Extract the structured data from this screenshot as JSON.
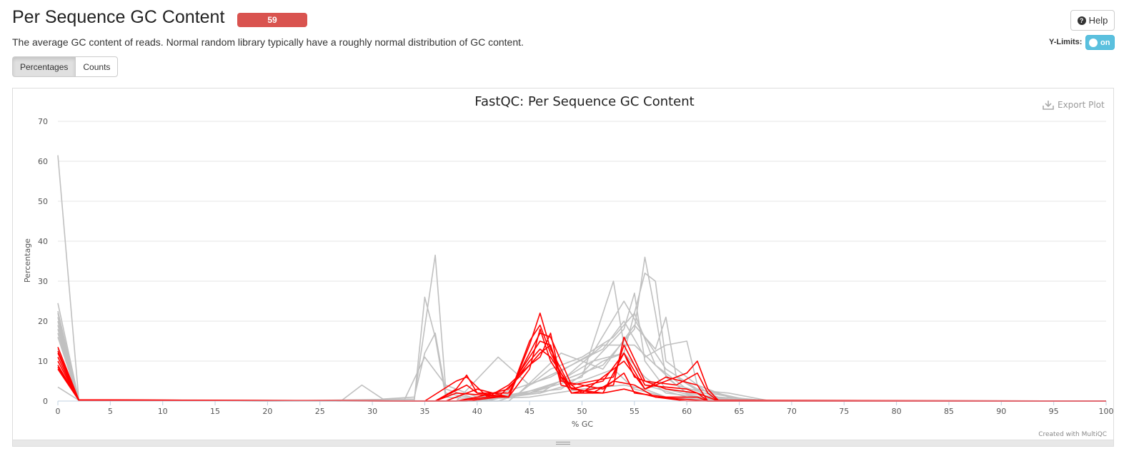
{
  "header": {
    "title": "Per Sequence GC Content",
    "status_count": "59",
    "help_label": "Help",
    "description": "The average GC content of reads. Normal random library typically have a roughly normal distribution of GC content."
  },
  "controls": {
    "ylimits_label": "Y-Limits:",
    "ylimits_toggle": "on",
    "tabs": [
      {
        "label": "Percentages",
        "active": true
      },
      {
        "label": "Counts",
        "active": false
      }
    ]
  },
  "plot": {
    "export_label": "Export Plot",
    "credit": "Created with MultiQC"
  },
  "colors": {
    "fail": "#ff0000",
    "pass": "#c0c0c0",
    "status_bar": "#d9534f",
    "toggle": "#5bc0de"
  },
  "chart_data": {
    "type": "line",
    "title": "FastQC: Per Sequence GC Content",
    "xlabel": "% GC",
    "ylabel": "Percentage",
    "xlim": [
      0,
      100
    ],
    "ylim": [
      0,
      70
    ],
    "xticks": [
      0,
      5,
      10,
      15,
      20,
      25,
      30,
      35,
      40,
      45,
      50,
      55,
      60,
      65,
      70,
      75,
      80,
      85,
      90,
      95,
      100
    ],
    "yticks": [
      0,
      10,
      20,
      30,
      40,
      50,
      60,
      70
    ],
    "grid": true,
    "series": [
      {
        "status": "pass",
        "points": [
          [
            0,
            61.5
          ],
          [
            2,
            0.3
          ],
          [
            20,
            0
          ],
          [
            34,
            0.2
          ],
          [
            35,
            26
          ],
          [
            36,
            16
          ],
          [
            37,
            1
          ],
          [
            40,
            0.5
          ],
          [
            45,
            1
          ],
          [
            50,
            3
          ],
          [
            54,
            4
          ],
          [
            56,
            3
          ],
          [
            58,
            1
          ],
          [
            62,
            0.3
          ],
          [
            66,
            0
          ]
        ]
      },
      {
        "status": "pass",
        "points": [
          [
            0,
            24.5
          ],
          [
            2,
            0.3
          ],
          [
            20,
            0
          ],
          [
            34,
            0.5
          ],
          [
            36,
            36.5
          ],
          [
            37,
            3
          ],
          [
            40,
            0.5
          ],
          [
            46,
            2
          ],
          [
            50,
            5
          ],
          [
            53,
            8
          ],
          [
            55,
            3
          ],
          [
            58,
            1
          ],
          [
            62,
            0.2
          ],
          [
            66,
            0
          ]
        ]
      },
      {
        "status": "pass",
        "points": [
          [
            0,
            22
          ],
          [
            2,
            0.2
          ],
          [
            27,
            0
          ],
          [
            29,
            4
          ],
          [
            31,
            0.5
          ],
          [
            34,
            1
          ],
          [
            35,
            12
          ],
          [
            36,
            17
          ],
          [
            37,
            2
          ],
          [
            40,
            0.5
          ],
          [
            48,
            3
          ],
          [
            52,
            10
          ],
          [
            54,
            12
          ],
          [
            56,
            6
          ],
          [
            58,
            2
          ],
          [
            63,
            0.5
          ],
          [
            70,
            0
          ]
        ]
      },
      {
        "status": "pass",
        "points": [
          [
            0,
            20
          ],
          [
            2,
            0.2
          ],
          [
            20,
            0
          ],
          [
            33,
            0
          ],
          [
            35,
            11
          ],
          [
            37,
            4
          ],
          [
            40,
            1
          ],
          [
            45,
            2
          ],
          [
            50,
            6
          ],
          [
            53,
            30
          ],
          [
            54,
            14
          ],
          [
            56,
            4
          ],
          [
            60,
            1
          ],
          [
            65,
            0
          ]
        ]
      },
      {
        "status": "pass",
        "points": [
          [
            0,
            16
          ],
          [
            2,
            0.2
          ],
          [
            40,
            0
          ],
          [
            45,
            2
          ],
          [
            50,
            7
          ],
          [
            54,
            18
          ],
          [
            55,
            27
          ],
          [
            56,
            10
          ],
          [
            58,
            3
          ],
          [
            62,
            0.5
          ],
          [
            66,
            0
          ]
        ]
      },
      {
        "status": "pass",
        "points": [
          [
            0,
            13
          ],
          [
            2,
            0.2
          ],
          [
            40,
            0
          ],
          [
            46,
            3
          ],
          [
            52,
            9
          ],
          [
            55,
            18
          ],
          [
            56,
            36
          ],
          [
            57,
            22
          ],
          [
            58,
            6
          ],
          [
            60,
            2
          ],
          [
            64,
            0.5
          ],
          [
            68,
            0
          ]
        ]
      },
      {
        "status": "pass",
        "points": [
          [
            0,
            3.5
          ],
          [
            2,
            0.2
          ],
          [
            40,
            0
          ],
          [
            46,
            2
          ],
          [
            51,
            10
          ],
          [
            54,
            12
          ],
          [
            56,
            32
          ],
          [
            57,
            30
          ],
          [
            58,
            10
          ],
          [
            62,
            2
          ],
          [
            66,
            0.3
          ],
          [
            70,
            0
          ]
        ]
      },
      {
        "status": "pass",
        "points": [
          [
            0,
            22.5
          ],
          [
            2,
            0.2
          ],
          [
            41,
            0
          ],
          [
            44,
            2
          ],
          [
            48,
            12
          ],
          [
            52,
            8
          ],
          [
            55,
            19
          ],
          [
            57,
            13
          ],
          [
            58,
            21
          ],
          [
            59,
            6
          ],
          [
            62,
            1
          ],
          [
            66,
            0
          ]
        ]
      },
      {
        "status": "pass",
        "points": [
          [
            0,
            18
          ],
          [
            2,
            0.2
          ],
          [
            38,
            0
          ],
          [
            42,
            11
          ],
          [
            45,
            4
          ],
          [
            49,
            9
          ],
          [
            52,
            13
          ],
          [
            54,
            20
          ],
          [
            56,
            11
          ],
          [
            58,
            14
          ],
          [
            60,
            15
          ],
          [
            61,
            4
          ],
          [
            64,
            1
          ],
          [
            68,
            0
          ]
        ]
      },
      {
        "status": "pass",
        "points": [
          [
            0,
            21
          ],
          [
            2,
            0.2
          ],
          [
            40,
            0
          ],
          [
            47,
            6
          ],
          [
            51,
            12
          ],
          [
            54,
            25
          ],
          [
            56,
            16
          ],
          [
            58,
            8
          ],
          [
            61,
            3
          ],
          [
            66,
            0.2
          ]
        ]
      },
      {
        "status": "pass",
        "points": [
          [
            0,
            19
          ],
          [
            2,
            0.3
          ],
          [
            42,
            0
          ],
          [
            48,
            5
          ],
          [
            52,
            14
          ],
          [
            55,
            14
          ],
          [
            57,
            9
          ],
          [
            59,
            4
          ],
          [
            63,
            1
          ],
          [
            68,
            0
          ]
        ]
      },
      {
        "status": "pass",
        "points": [
          [
            0,
            17
          ],
          [
            2,
            0.2
          ],
          [
            43,
            0
          ],
          [
            47,
            8
          ],
          [
            50,
            11
          ],
          [
            53,
            16
          ],
          [
            55,
            22
          ],
          [
            57,
            9
          ],
          [
            60,
            3
          ],
          [
            64,
            2
          ],
          [
            68,
            0
          ]
        ]
      },
      {
        "status": "fail",
        "points": [
          [
            0,
            13.5
          ],
          [
            2,
            0.3
          ],
          [
            35,
            0
          ],
          [
            38,
            5
          ],
          [
            39,
            6
          ],
          [
            41,
            1
          ],
          [
            43,
            1
          ],
          [
            45,
            14
          ],
          [
            46,
            22
          ],
          [
            47,
            13
          ],
          [
            49,
            3
          ],
          [
            52,
            2
          ],
          [
            54,
            12
          ],
          [
            56,
            3
          ],
          [
            60,
            7
          ],
          [
            61,
            10
          ],
          [
            62,
            3
          ],
          [
            63,
            0.2
          ]
        ]
      },
      {
        "status": "fail",
        "points": [
          [
            0,
            12
          ],
          [
            2,
            0.2
          ],
          [
            36,
            0
          ],
          [
            38,
            3
          ],
          [
            39,
            6.5
          ],
          [
            40,
            2
          ],
          [
            43,
            1
          ],
          [
            45,
            15
          ],
          [
            46,
            19
          ],
          [
            47,
            12
          ],
          [
            49,
            2
          ],
          [
            53,
            4
          ],
          [
            54,
            16
          ],
          [
            56,
            5
          ],
          [
            59,
            4
          ],
          [
            61,
            7
          ],
          [
            62,
            2
          ],
          [
            63,
            0
          ]
        ]
      },
      {
        "status": "fail",
        "points": [
          [
            0,
            11
          ],
          [
            2,
            0.2
          ],
          [
            36,
            0
          ],
          [
            39,
            4
          ],
          [
            40,
            2
          ],
          [
            43,
            2
          ],
          [
            45,
            12
          ],
          [
            46,
            17
          ],
          [
            47,
            16
          ],
          [
            49,
            4
          ],
          [
            53,
            6
          ],
          [
            54,
            14
          ],
          [
            56,
            4
          ],
          [
            60,
            3
          ],
          [
            62,
            1
          ],
          [
            63,
            0
          ]
        ]
      },
      {
        "status": "fail",
        "points": [
          [
            0,
            10
          ],
          [
            2,
            0.2
          ],
          [
            37,
            0
          ],
          [
            40,
            3
          ],
          [
            43,
            1
          ],
          [
            44,
            7
          ],
          [
            46,
            15
          ],
          [
            47,
            14
          ],
          [
            48,
            6
          ],
          [
            50,
            2
          ],
          [
            53,
            8
          ],
          [
            54,
            10
          ],
          [
            56,
            3
          ],
          [
            58,
            6
          ],
          [
            61,
            4
          ],
          [
            62,
            0
          ]
        ]
      },
      {
        "status": "fail",
        "points": [
          [
            0,
            9
          ],
          [
            2,
            0.2
          ],
          [
            38,
            0
          ],
          [
            40,
            1
          ],
          [
            43,
            3
          ],
          [
            45,
            10
          ],
          [
            46,
            13
          ],
          [
            47,
            11
          ],
          [
            49,
            3
          ],
          [
            52,
            5
          ],
          [
            54,
            12
          ],
          [
            55,
            6
          ],
          [
            58,
            3
          ],
          [
            61,
            2
          ],
          [
            62,
            0
          ]
        ]
      },
      {
        "status": "fail",
        "points": [
          [
            0,
            8.5
          ],
          [
            2,
            0.2
          ],
          [
            38,
            0
          ],
          [
            41,
            1
          ],
          [
            43,
            4
          ],
          [
            45,
            9
          ],
          [
            46,
            11
          ],
          [
            47,
            17
          ],
          [
            48,
            5
          ],
          [
            52,
            3
          ],
          [
            54,
            7
          ],
          [
            55,
            2
          ],
          [
            58,
            1
          ],
          [
            61,
            1
          ],
          [
            62,
            0
          ]
        ]
      },
      {
        "status": "fail",
        "points": [
          [
            0,
            8
          ],
          [
            2,
            0.2
          ],
          [
            39,
            0
          ],
          [
            42,
            1
          ],
          [
            44,
            6
          ],
          [
            46,
            12
          ],
          [
            47,
            14
          ],
          [
            48,
            4
          ],
          [
            51,
            2
          ],
          [
            53,
            5
          ],
          [
            55,
            4
          ],
          [
            57,
            1
          ],
          [
            60,
            0
          ]
        ]
      },
      {
        "status": "fail",
        "points": [
          [
            0,
            12.5
          ],
          [
            2,
            0.3
          ],
          [
            36,
            0
          ],
          [
            38,
            2
          ],
          [
            43,
            1
          ],
          [
            45,
            8
          ],
          [
            46,
            18
          ],
          [
            47,
            10
          ],
          [
            49,
            2
          ],
          [
            52,
            2
          ],
          [
            54,
            3
          ],
          [
            57,
            1
          ],
          [
            62,
            0
          ]
        ]
      }
    ]
  }
}
